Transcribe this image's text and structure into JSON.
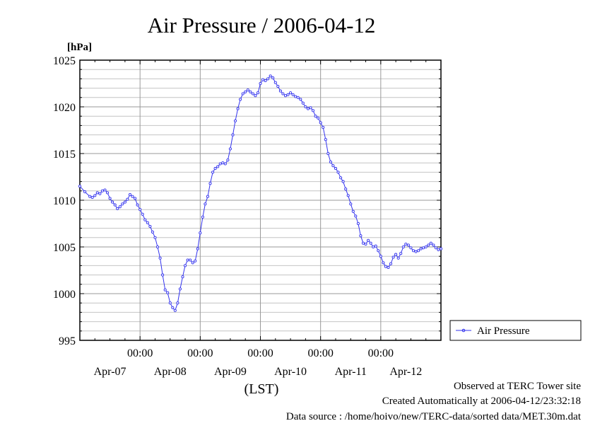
{
  "chart_data": {
    "type": "line",
    "title": "Air Pressure / 2006-04-12",
    "ylabel": "[hPa]",
    "xlabel": "(LST)",
    "ylim": [
      995,
      1025
    ],
    "xlim": [
      0,
      144
    ],
    "y_ticks": [
      995,
      1000,
      1005,
      1010,
      1015,
      1020,
      1025
    ],
    "x_time_labels": [
      "00:00",
      "00:00",
      "00:00",
      "00:00",
      "00:00"
    ],
    "x_time_label_hours": [
      24,
      48,
      72,
      96,
      120
    ],
    "x_date_labels": [
      "Apr-07",
      "Apr-08",
      "Apr-09",
      "Apr-10",
      "Apr-11",
      "Apr-12"
    ],
    "x_date_label_hours": [
      12,
      36,
      60,
      84,
      108,
      130
    ],
    "grid": true,
    "legend_position": "right",
    "series": [
      {
        "name": "Air Pressure",
        "color": "#3333ee",
        "points": [
          [
            0,
            1011.5
          ],
          [
            2,
            1010.9
          ],
          [
            4,
            1010.4
          ],
          [
            5,
            1010.3
          ],
          [
            6,
            1010.5
          ],
          [
            7,
            1010.8
          ],
          [
            8,
            1010.7
          ],
          [
            9,
            1011.0
          ],
          [
            10,
            1011.1
          ],
          [
            11,
            1010.8
          ],
          [
            12,
            1010.2
          ],
          [
            13,
            1009.8
          ],
          [
            14,
            1009.5
          ],
          [
            15,
            1009.1
          ],
          [
            16,
            1009.3
          ],
          [
            17,
            1009.6
          ],
          [
            18,
            1009.8
          ],
          [
            19,
            1010.1
          ],
          [
            20,
            1010.6
          ],
          [
            21,
            1010.4
          ],
          [
            22,
            1010.2
          ],
          [
            23,
            1009.5
          ],
          [
            24,
            1009.0
          ],
          [
            25,
            1008.5
          ],
          [
            26,
            1007.9
          ],
          [
            27,
            1007.6
          ],
          [
            28,
            1007.2
          ],
          [
            29,
            1006.6
          ],
          [
            30,
            1006.0
          ],
          [
            31,
            1005.0
          ],
          [
            32,
            1003.8
          ],
          [
            33,
            1002.0
          ],
          [
            34,
            1000.4
          ],
          [
            35,
            1000.1
          ],
          [
            36,
            999.0
          ],
          [
            37,
            998.5
          ],
          [
            38,
            998.2
          ],
          [
            39,
            999.0
          ],
          [
            40,
            1000.5
          ],
          [
            41,
            1001.8
          ],
          [
            42,
            1003.0
          ],
          [
            43,
            1003.6
          ],
          [
            44,
            1003.6
          ],
          [
            45,
            1003.3
          ],
          [
            46,
            1003.5
          ],
          [
            47,
            1004.8
          ],
          [
            48,
            1006.5
          ],
          [
            49,
            1008.2
          ],
          [
            50,
            1009.6
          ],
          [
            51,
            1010.4
          ],
          [
            52,
            1011.8
          ],
          [
            53,
            1013.0
          ],
          [
            54,
            1013.4
          ],
          [
            55,
            1013.6
          ],
          [
            56,
            1013.9
          ],
          [
            57,
            1014.0
          ],
          [
            58,
            1013.9
          ],
          [
            59,
            1014.3
          ],
          [
            60,
            1015.5
          ],
          [
            61,
            1017.0
          ],
          [
            62,
            1018.5
          ],
          [
            63,
            1019.8
          ],
          [
            64,
            1020.8
          ],
          [
            65,
            1021.4
          ],
          [
            66,
            1021.6
          ],
          [
            67,
            1021.8
          ],
          [
            68,
            1021.6
          ],
          [
            69,
            1021.4
          ],
          [
            70,
            1021.2
          ],
          [
            71,
            1021.5
          ],
          [
            72,
            1022.5
          ],
          [
            73,
            1022.9
          ],
          [
            74,
            1022.8
          ],
          [
            75,
            1023.0
          ],
          [
            76,
            1023.3
          ],
          [
            77,
            1023.1
          ],
          [
            78,
            1022.6
          ],
          [
            79,
            1022.2
          ],
          [
            80,
            1021.7
          ],
          [
            81,
            1021.4
          ],
          [
            82,
            1021.2
          ],
          [
            83,
            1021.3
          ],
          [
            84,
            1021.5
          ],
          [
            85,
            1021.3
          ],
          [
            86,
            1021.1
          ],
          [
            87,
            1021.0
          ],
          [
            88,
            1020.8
          ],
          [
            89,
            1020.4
          ],
          [
            90,
            1020.0
          ],
          [
            91,
            1019.8
          ],
          [
            92,
            1019.9
          ],
          [
            93,
            1019.6
          ],
          [
            94,
            1019.0
          ],
          [
            95,
            1018.8
          ],
          [
            96,
            1018.3
          ],
          [
            97,
            1017.8
          ],
          [
            98,
            1016.5
          ],
          [
            99,
            1015.0
          ],
          [
            100,
            1014.1
          ],
          [
            101,
            1013.7
          ],
          [
            102,
            1013.4
          ],
          [
            103,
            1013.0
          ],
          [
            104,
            1012.4
          ],
          [
            105,
            1012.0
          ],
          [
            106,
            1011.2
          ],
          [
            107,
            1010.5
          ],
          [
            108,
            1009.6
          ],
          [
            109,
            1008.8
          ],
          [
            110,
            1008.3
          ],
          [
            111,
            1007.5
          ],
          [
            112,
            1006.2
          ],
          [
            113,
            1005.4
          ],
          [
            114,
            1005.3
          ],
          [
            115,
            1005.7
          ],
          [
            116,
            1005.4
          ],
          [
            117,
            1005.0
          ],
          [
            118,
            1005.1
          ],
          [
            119,
            1004.6
          ],
          [
            120,
            1004.0
          ],
          [
            121,
            1003.3
          ],
          [
            122,
            1002.9
          ],
          [
            123,
            1002.8
          ],
          [
            124,
            1003.2
          ],
          [
            125,
            1003.9
          ],
          [
            126,
            1004.2
          ],
          [
            127,
            1003.8
          ],
          [
            128,
            1004.3
          ],
          [
            129,
            1005.0
          ],
          [
            130,
            1005.3
          ],
          [
            131,
            1005.2
          ],
          [
            132,
            1004.9
          ],
          [
            133,
            1004.6
          ],
          [
            134,
            1004.5
          ],
          [
            135,
            1004.6
          ],
          [
            136,
            1004.8
          ],
          [
            137,
            1004.9
          ],
          [
            138,
            1005.0
          ],
          [
            139,
            1005.2
          ],
          [
            140,
            1005.4
          ],
          [
            141,
            1005.2
          ],
          [
            142,
            1004.9
          ],
          [
            143,
            1004.7
          ],
          [
            144,
            1004.8
          ]
        ]
      }
    ]
  },
  "footer": {
    "line1": "Observed at TERC Tower site",
    "line2": "Created Automatically at 2006-04-12/23:32:18",
    "line3": "Data source : /home/hoivo/new/TERC-data/sorted  data/MET.30m.dat"
  }
}
